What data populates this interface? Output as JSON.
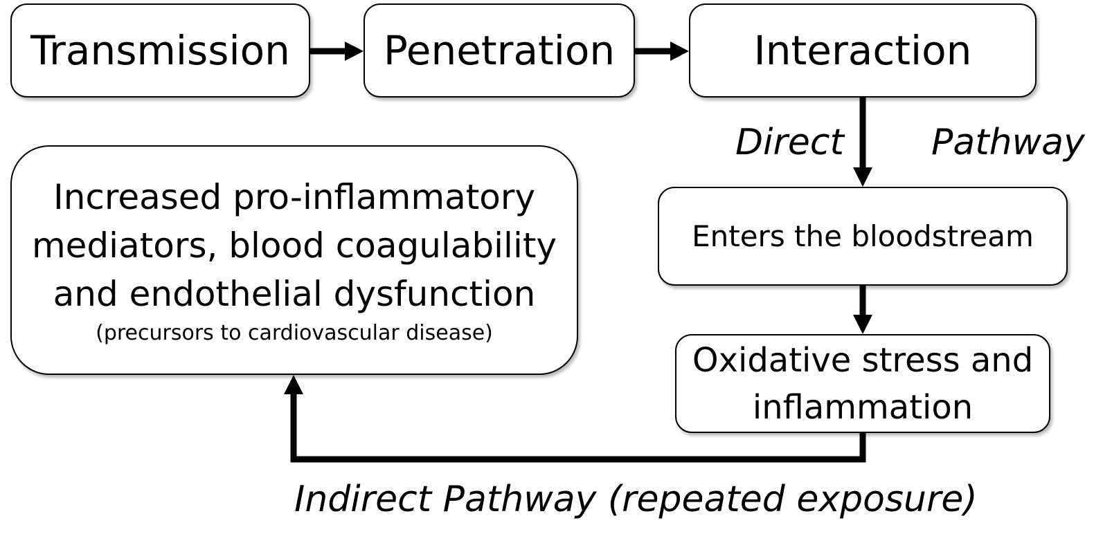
{
  "nodes": {
    "transmission": "Transmission",
    "penetration": "Penetration",
    "interaction": "Interaction",
    "bloodstream": "Enters the bloodstream",
    "oxidative": {
      "line1": "Oxidative stress and",
      "line2": "inflammation"
    },
    "outcome": {
      "line1": "Increased pro-inflammatory",
      "line2": "mediators, blood coagulability",
      "line3": "and endothelial dysfunction",
      "sub": "(precursors to cardiovascular disease)"
    }
  },
  "labels": {
    "direct": "Direct",
    "pathway": "Pathway",
    "indirect": "Indirect Pathway (repeated exposure)"
  },
  "colors": {
    "stroke": "#000000",
    "box_fill": "#ffffff"
  }
}
